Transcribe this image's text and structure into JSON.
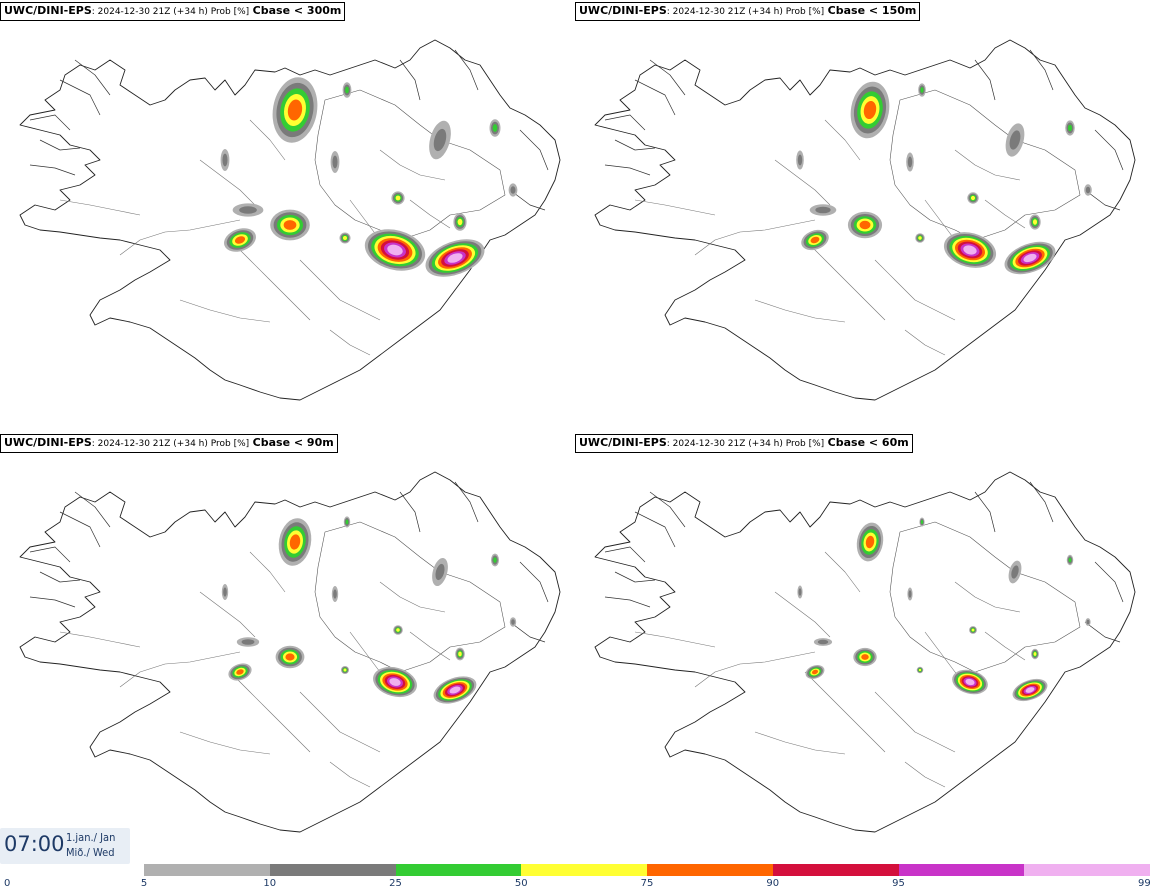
{
  "panels": [
    {
      "model": "UWC/DINI-EPS",
      "meta": ": 2024-12-30 21Z (+34 h) Prob [%]",
      "field": "Cbase < 300m",
      "level": 4
    },
    {
      "model": "UWC/DINI-EPS",
      "meta": ": 2024-12-30 21Z (+34 h) Prob [%]",
      "field": "Cbase < 150m",
      "level": 3
    },
    {
      "model": "UWC/DINI-EPS",
      "meta": ": 2024-12-30 21Z (+34 h) Prob [%]",
      "field": "Cbase < 90m",
      "level": 2
    },
    {
      "model": "UWC/DINI-EPS",
      "meta": ": 2024-12-30 21Z (+34 h) Prob [%]",
      "field": "Cbase < 60m",
      "level": 1
    }
  ],
  "time": {
    "clock": "07:00",
    "date_line1": "1.jan./ Jan",
    "date_line2": "Mið./ Wed"
  },
  "legend": {
    "ticks": [
      "0",
      "5",
      "10",
      "25",
      "50",
      "75",
      "90",
      "95",
      "99"
    ],
    "colors": [
      "#b0b0b0",
      "#7a7a7a",
      "#33cc33",
      "#ffff33",
      "#ff6600",
      "#d40f3c",
      "#c833c8",
      "#f0b0f0"
    ]
  }
}
